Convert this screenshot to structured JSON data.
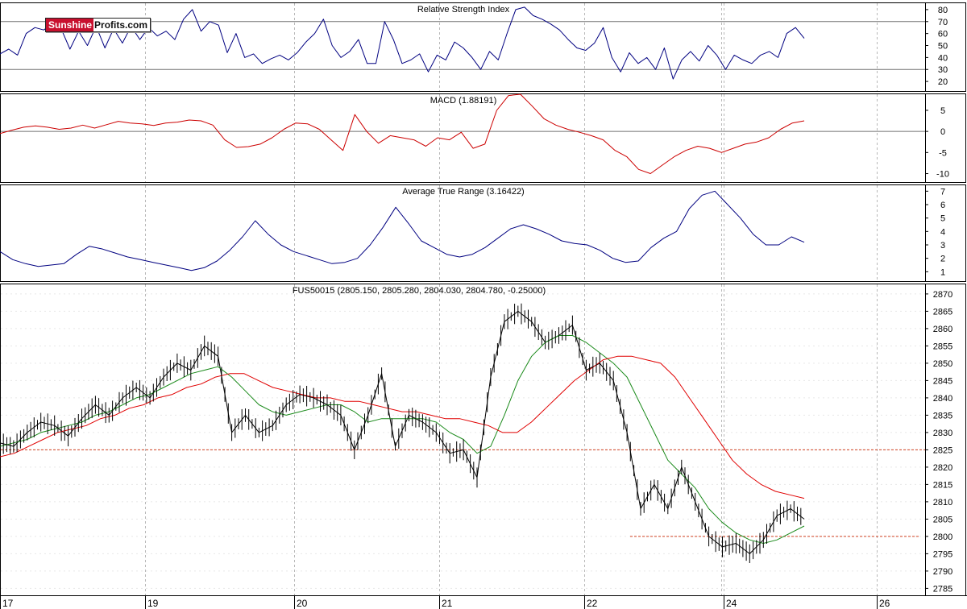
{
  "logo": {
    "part1": "Sunshine",
    "part2": "Profits.com"
  },
  "colors": {
    "price": "#000000",
    "ma_fast": "#1a8a1a",
    "ma_slow": "#e00000",
    "rsi": "#000080",
    "macd": "#cc0000",
    "signal": "#0000cc",
    "atr": "#000080",
    "support": "#d04020",
    "grid": "#b8b8b8"
  },
  "chart_data": [
    {
      "type": "line",
      "title": "Relative Strength Index",
      "ylim": [
        12,
        86
      ],
      "yticks": [
        20,
        30,
        40,
        50,
        60,
        70,
        80
      ],
      "reference_lines": [
        30,
        70
      ],
      "series": [
        {
          "values": [
            43,
            47,
            42,
            60,
            65,
            63,
            68,
            64,
            47,
            62,
            50,
            66,
            48,
            64,
            52,
            66,
            55,
            65,
            58,
            62,
            55,
            72,
            80,
            62,
            70,
            67,
            44,
            60,
            40,
            43,
            35,
            39,
            42,
            38,
            44,
            53,
            60,
            72,
            50,
            40,
            45,
            55,
            35,
            35,
            70,
            55,
            35,
            38,
            43,
            28,
            42,
            38,
            53,
            48,
            40,
            30,
            45,
            38,
            60,
            80,
            82,
            75,
            72,
            68,
            63,
            55,
            48,
            46,
            52,
            65,
            40,
            28,
            44,
            35,
            40,
            30,
            48,
            22,
            38,
            45,
            37,
            50,
            42,
            30,
            42,
            38,
            35,
            42,
            45,
            40,
            60,
            65,
            56
          ]
        }
      ]
    },
    {
      "type": "line",
      "title": "MACD (1.88191)",
      "ylim": [
        -12,
        9
      ],
      "yticks": [
        -10,
        -5,
        0,
        5
      ],
      "reference_lines": [
        0
      ],
      "series": [
        {
          "values": [
            -0.5,
            0.3,
            1.0,
            1.3,
            1.0,
            0.5,
            0.8,
            1.5,
            0.8,
            1.6,
            2.4,
            2.0,
            1.8,
            1.4,
            2.0,
            2.2,
            2.7,
            2.5,
            1.5,
            -2.0,
            -3.8,
            -3.6,
            -3.0,
            -1.5,
            0.5,
            2.0,
            1.8,
            0.5,
            -2.0,
            -4.5,
            4.0,
            0.0,
            -2.8,
            -1.0,
            -1.5,
            -2.0,
            -3.5,
            -1.5,
            -2.0,
            -0.2,
            -4.0,
            -3.0,
            5.0,
            8.5,
            8.8,
            6.0,
            3.0,
            1.5,
            0.5,
            -0.2,
            -1.0,
            -2.0,
            -4.5,
            -6.0,
            -9.0,
            -10.0,
            -8.0,
            -6.0,
            -4.5,
            -3.5,
            -4.0,
            -5.0,
            -4.0,
            -3.0,
            -2.5,
            -1.5,
            0.5,
            2.0,
            2.5
          ]
        },
        {
          "values": [
            -1.0,
            -0.3,
            0.5,
            1.0,
            0.9,
            0.7,
            0.7,
            1.0,
            1.0,
            1.2,
            1.8,
            1.9,
            1.9,
            1.6,
            1.8,
            2.0,
            2.4,
            2.4,
            1.9,
            -0.5,
            -2.8,
            -3.4,
            -3.2,
            -2.3,
            -0.8,
            1.0,
            1.5,
            0.9,
            -1.0,
            -3.0,
            -1.5,
            -0.5,
            -1.5,
            -1.3,
            -1.4,
            -1.7,
            -2.6,
            -2.0,
            -2.0,
            -1.0,
            -2.5,
            -2.8,
            0.5,
            5.5,
            7.8,
            7.0,
            4.8,
            2.8,
            1.4,
            0.5,
            -0.3,
            -1.2,
            -3.0,
            -4.8,
            -7.0,
            -8.8,
            -8.5,
            -7.0,
            -5.5,
            -4.3,
            -4.0,
            -4.5,
            -4.2,
            -3.5,
            -2.9,
            -2.0,
            -0.6,
            1.0,
            2.2
          ]
        }
      ]
    },
    {
      "type": "line",
      "title": "Average True Range (3.16422)",
      "ylim": [
        0.3,
        7.5
      ],
      "yticks": [
        1,
        2,
        3,
        4,
        5,
        6,
        7
      ],
      "series": [
        {
          "values": [
            2.5,
            1.9,
            1.6,
            1.4,
            1.5,
            1.6,
            2.3,
            2.9,
            2.7,
            2.4,
            2.1,
            1.9,
            1.7,
            1.5,
            1.3,
            1.1,
            1.3,
            1.8,
            2.6,
            3.6,
            4.8,
            3.8,
            3.0,
            2.5,
            2.2,
            1.9,
            1.6,
            1.7,
            2.0,
            3.0,
            4.3,
            5.8,
            4.6,
            3.3,
            2.8,
            2.3,
            2.1,
            2.3,
            2.8,
            3.5,
            4.2,
            4.5,
            4.2,
            3.8,
            3.3,
            3.1,
            3.0,
            2.6,
            2.0,
            1.7,
            1.8,
            2.8,
            3.5,
            4.0,
            5.7,
            6.7,
            7.0,
            6.0,
            5.0,
            3.8,
            3.0,
            3.0,
            3.6,
            3.2
          ]
        }
      ]
    },
    {
      "type": "line",
      "title": "FUS50015 (2805.150, 2805.280, 2804.030, 2804.780, -0.25000)",
      "ylim": [
        2783,
        2873
      ],
      "yticks": [
        2785,
        2790,
        2795,
        2800,
        2805,
        2810,
        2815,
        2820,
        2825,
        2830,
        2835,
        2840,
        2845,
        2850,
        2855,
        2860,
        2865,
        2870
      ],
      "x_tick_labels": [
        "17",
        "19",
        "20",
        "21",
        "22",
        "24",
        "26"
      ],
      "reference_lines": [
        2825,
        2800
      ],
      "series": [
        {
          "values": [
            2827,
            2826,
            2830,
            2833,
            2832,
            2829,
            2834,
            2838,
            2835,
            2840,
            2843,
            2840,
            2846,
            2850,
            2848,
            2855,
            2852,
            2830,
            2835,
            2830,
            2832,
            2838,
            2841,
            2840,
            2838,
            2835,
            2825,
            2835,
            2847,
            2826,
            2835,
            2833,
            2830,
            2824,
            2825,
            2817,
            2846,
            2862,
            2865,
            2862,
            2856,
            2858,
            2861,
            2848,
            2850,
            2845,
            2830,
            2808,
            2815,
            2808,
            2820,
            2810,
            2800,
            2797,
            2798,
            2795,
            2799,
            2806,
            2808,
            2805
          ]
        },
        {
          "values": [
            2826,
            2827,
            2828,
            2830,
            2831,
            2832,
            2833,
            2835,
            2836,
            2838,
            2840,
            2841,
            2843,
            2845,
            2847,
            2848,
            2849,
            2846,
            2842,
            2838,
            2836,
            2835,
            2836,
            2837,
            2838,
            2838,
            2836,
            2833,
            2834,
            2834,
            2834,
            2834,
            2833,
            2830,
            2828,
            2824,
            2826,
            2835,
            2845,
            2852,
            2856,
            2858,
            2858,
            2856,
            2853,
            2850,
            2846,
            2838,
            2830,
            2822,
            2818,
            2814,
            2808,
            2804,
            2801,
            2799,
            2798,
            2799,
            2801,
            2803
          ]
        },
        {
          "values": [
            2823,
            2824,
            2826,
            2828,
            2830,
            2831,
            2832,
            2834,
            2835,
            2837,
            2838,
            2840,
            2841,
            2843,
            2844,
            2846,
            2847,
            2847,
            2845,
            2843,
            2842,
            2841,
            2840,
            2840,
            2839,
            2839,
            2838,
            2837,
            2836,
            2836,
            2835,
            2834,
            2834,
            2833,
            2832,
            2830,
            2830,
            2833,
            2837,
            2841,
            2845,
            2848,
            2851,
            2852,
            2852,
            2851,
            2850,
            2846,
            2840,
            2834,
            2828,
            2822,
            2818,
            2815,
            2813,
            2812,
            2811
          ]
        }
      ]
    }
  ]
}
